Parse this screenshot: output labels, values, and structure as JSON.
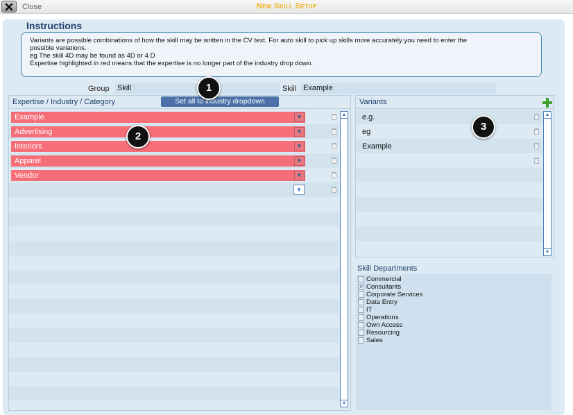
{
  "window": {
    "close_label": "Close",
    "title": "New Skill Setup"
  },
  "instructions": {
    "title": "Instructions",
    "lines": [
      "Variants are possible combinations of how the skill may be written in the CV text. For auto skill to pick up skills more accurately you need to enter the",
      "possible variations.",
      "eg The skill 4D may be found as 4D or 4 D",
      "Expertise highlighted in red means that the expertise is no longer part of the industry drop down."
    ]
  },
  "form": {
    "group_label": "Group",
    "group_value": "Skill",
    "skill_label": "Skill",
    "skill_value": "Example"
  },
  "set_all_button": "Set all to industry dropdown",
  "expertise": {
    "header": "Expertise / Industry / Category",
    "items": [
      "Example",
      "Advertising",
      "Interiors",
      "Apparel",
      "Vendor"
    ]
  },
  "variants": {
    "header": "Variants",
    "items": [
      "e.g.",
      "eg",
      "Example"
    ]
  },
  "departments": {
    "header": "Skill Departments",
    "items": [
      {
        "label": "Commercial",
        "checked": false
      },
      {
        "label": "Consultants",
        "checked": true
      },
      {
        "label": "Corporate Services",
        "checked": false
      },
      {
        "label": "Data Entry",
        "checked": false
      },
      {
        "label": "IT",
        "checked": false
      },
      {
        "label": "Operations",
        "checked": false
      },
      {
        "label": "Own Access",
        "checked": false
      },
      {
        "label": "Resourcing",
        "checked": false
      },
      {
        "label": "Sales",
        "checked": false
      }
    ]
  },
  "markers": [
    "1",
    "2",
    "3"
  ],
  "colors": {
    "title_gold": "#f2b21c",
    "expired_red": "#f66e78",
    "panel_blue": "#dde9f3",
    "add_green": "#3fa22d"
  },
  "icons": {
    "close": "x-icon",
    "dropdown": "dropdown-arrow-icon",
    "delete": "trash-icon",
    "add": "plus-icon"
  }
}
